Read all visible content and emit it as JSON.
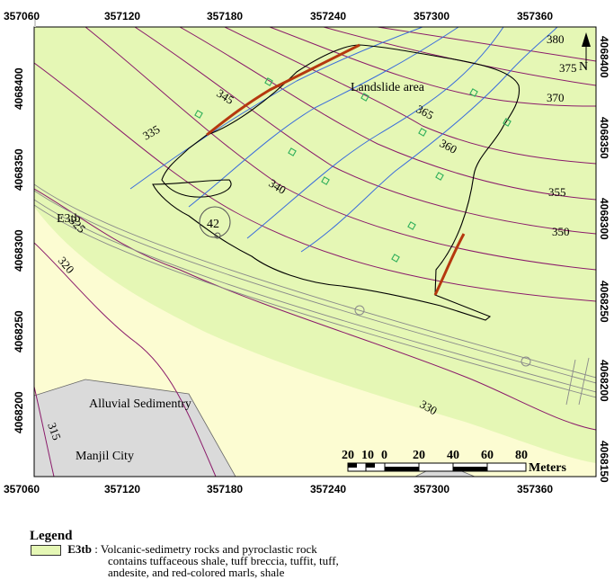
{
  "map": {
    "x_ticks": [
      "357060",
      "357120",
      "357180",
      "357240",
      "357300",
      "357360"
    ],
    "y_ticks": [
      "4068400",
      "4068350",
      "4068300",
      "4068250",
      "4068200",
      "4068150"
    ],
    "contours": [
      "380",
      "375",
      "370",
      "365",
      "360",
      "355",
      "350",
      "345",
      "340",
      "335",
      "330",
      "325",
      "320",
      "315"
    ],
    "labels": {
      "landslide": "Landslide area",
      "e3tb": "E3tb",
      "point_id": "42",
      "alluvial": "Alluvial Sedimentry",
      "manjil": "Manjil City",
      "north": "N"
    },
    "scale": {
      "ticks": [
        "20",
        "10",
        "0",
        "20",
        "40",
        "60",
        "80"
      ],
      "unit": "Meters"
    },
    "colors": {
      "volcanic": "#e5f7b5",
      "alluvial": "#fcfcd2",
      "city": "#dadada",
      "contour": "#8a1a6a",
      "stream": "#3b6ddc",
      "scarp": "#b5380e",
      "boundary": "#000000",
      "road": "#8a8a8a",
      "marker": "#2faf5a"
    }
  },
  "legend": {
    "title": "Legend",
    "e3tb_code": "E3tb",
    "e3tb_desc_1": ": Volcanic-sedimetry  rocks and pyroclastic rock",
    "e3tb_desc_2": "contains tuffaceous shale, tuff breccia, tuffit, tuff,",
    "e3tb_desc_3": "andesite, and red-colored marls, shale",
    "alluvial": ":Alluvial Sedimentry",
    "manjil": ":Manjil City"
  }
}
